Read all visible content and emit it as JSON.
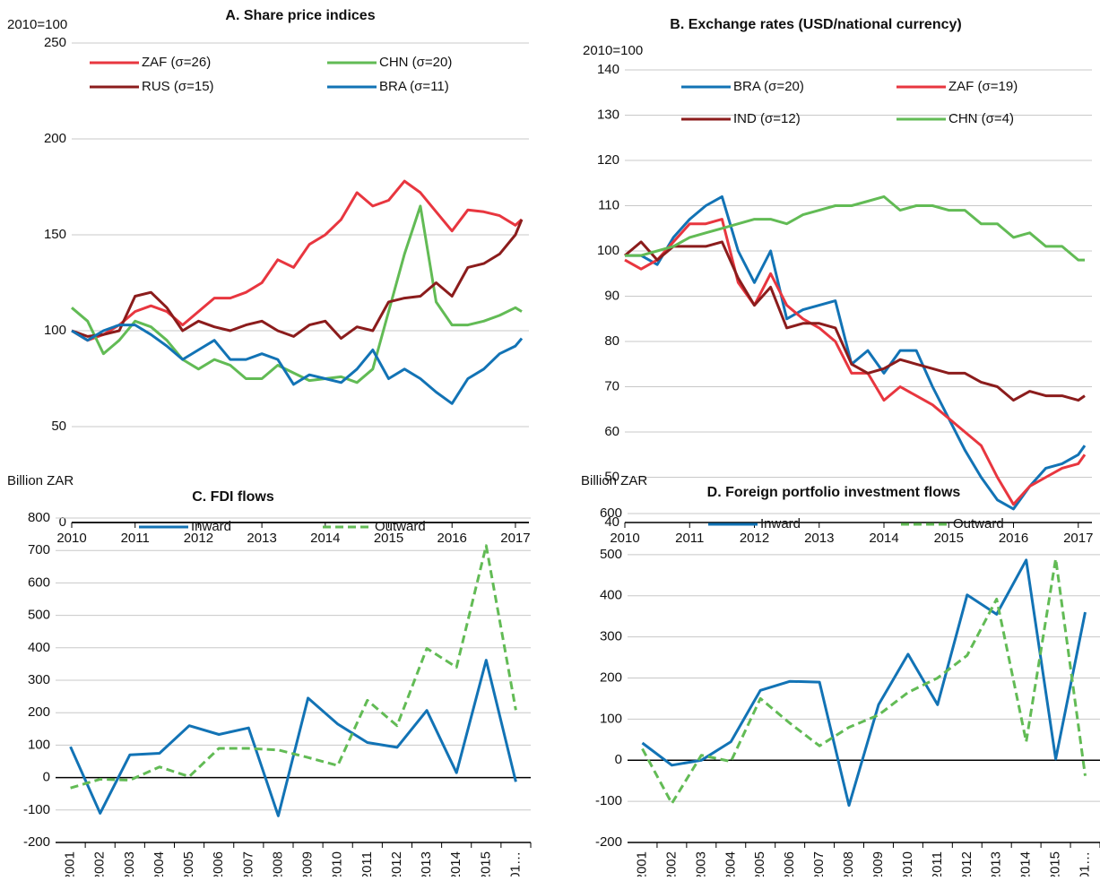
{
  "chart_data": [
    {
      "type": "line",
      "title": "A. Share price indices",
      "ylabel": "2010=100",
      "x": [
        2010,
        2010.25,
        2010.5,
        2010.75,
        2011,
        2011.25,
        2011.5,
        2011.75,
        2012,
        2012.25,
        2012.5,
        2012.75,
        2013,
        2013.25,
        2013.5,
        2013.75,
        2014,
        2014.25,
        2014.5,
        2014.75,
        2015,
        2015.25,
        2015.5,
        2015.75,
        2016,
        2016.25,
        2016.5,
        2016.75,
        2017,
        2017.1
      ],
      "xlim": [
        2010,
        2017.1
      ],
      "xticks": [
        2010,
        2011,
        2012,
        2013,
        2014,
        2015,
        2016,
        2017
      ],
      "ylim": [
        0,
        250
      ],
      "yticks": [
        0,
        50,
        100,
        150,
        200,
        250
      ],
      "grid": true,
      "legend": "top",
      "series": [
        {
          "name": "ZAF (σ=26)",
          "color": "#e8363f",
          "values": [
            100,
            95,
            98,
            103,
            110,
            113,
            110,
            103,
            110,
            117,
            117,
            120,
            125,
            137,
            133,
            145,
            150,
            158,
            172,
            165,
            168,
            178,
            172,
            162,
            152,
            163,
            162,
            160,
            155,
            158
          ]
        },
        {
          "name": "CHN (σ=20)",
          "color": "#62bb55",
          "values": [
            112,
            105,
            88,
            95,
            105,
            102,
            95,
            85,
            80,
            85,
            82,
            75,
            75,
            82,
            78,
            74,
            75,
            76,
            73,
            80,
            110,
            140,
            165,
            115,
            103,
            103,
            105,
            108,
            112,
            110
          ]
        },
        {
          "name": "RUS (σ=15)",
          "color": "#8b1c1c",
          "values": [
            100,
            97,
            98,
            100,
            118,
            120,
            112,
            100,
            105,
            102,
            100,
            103,
            105,
            100,
            97,
            103,
            105,
            96,
            102,
            100,
            115,
            117,
            118,
            125,
            118,
            133,
            135,
            140,
            150,
            158
          ]
        },
        {
          "name": "BRA (σ=11)",
          "color": "#1273b5",
          "values": [
            100,
            95,
            100,
            103,
            103,
            98,
            92,
            85,
            90,
            95,
            85,
            85,
            88,
            85,
            72,
            77,
            75,
            73,
            80,
            90,
            75,
            80,
            75,
            68,
            62,
            75,
            80,
            88,
            92,
            96
          ]
        }
      ]
    },
    {
      "type": "line",
      "title": "B. Exchange rates (USD/national currency)",
      "ylabel": "2010=100",
      "x": [
        2010,
        2010.25,
        2010.5,
        2010.75,
        2011,
        2011.25,
        2011.5,
        2011.75,
        2012,
        2012.25,
        2012.5,
        2012.75,
        2013,
        2013.25,
        2013.5,
        2013.75,
        2014,
        2014.25,
        2014.5,
        2014.75,
        2015,
        2015.25,
        2015.5,
        2015.75,
        2016,
        2016.25,
        2016.5,
        2016.75,
        2017,
        2017.1
      ],
      "xlim": [
        2010,
        2017.1
      ],
      "xticks": [
        2010,
        2011,
        2012,
        2013,
        2014,
        2015,
        2016,
        2017
      ],
      "ylim": [
        40,
        140
      ],
      "yticks": [
        40,
        50,
        60,
        70,
        80,
        90,
        100,
        110,
        120,
        130,
        140
      ],
      "grid": true,
      "legend": "top",
      "series": [
        {
          "name": "BRA (σ=20)",
          "color": "#1273b5",
          "values": [
            99,
            99,
            97,
            103,
            107,
            110,
            112,
            100,
            93,
            100,
            85,
            87,
            88,
            89,
            75,
            78,
            73,
            78,
            78,
            70,
            63,
            56,
            50,
            45,
            43,
            48,
            52,
            53,
            55,
            57
          ]
        },
        {
          "name": "ZAF (σ=19)",
          "color": "#e8363f",
          "values": [
            98,
            96,
            98,
            102,
            106,
            106,
            107,
            93,
            88,
            95,
            88,
            85,
            83,
            80,
            73,
            73,
            67,
            70,
            68,
            66,
            63,
            60,
            57,
            50,
            44,
            48,
            50,
            52,
            53,
            55
          ]
        },
        {
          "name": "IND (σ=12)",
          "color": "#8b1c1c",
          "values": [
            99,
            102,
            98,
            101,
            101,
            101,
            102,
            94,
            88,
            92,
            83,
            84,
            84,
            83,
            75,
            73,
            74,
            76,
            75,
            74,
            73,
            73,
            71,
            70,
            67,
            69,
            68,
            68,
            67,
            68
          ]
        },
        {
          "name": "CHN (σ=4)",
          "color": "#62bb55",
          "values": [
            99,
            99,
            100,
            101,
            103,
            104,
            105,
            106,
            107,
            107,
            106,
            108,
            109,
            110,
            110,
            111,
            112,
            109,
            110,
            110,
            109,
            109,
            106,
            106,
            103,
            104,
            101,
            101,
            98,
            98
          ]
        }
      ]
    },
    {
      "type": "line",
      "title": "C. FDI flows",
      "ylabel": "Billion ZAR",
      "categories": [
        "2001",
        "2002",
        "2003",
        "2004",
        "2005",
        "2006",
        "2007",
        "2008",
        "2009",
        "2010",
        "2011",
        "2012",
        "2013",
        "2014",
        "2015",
        "201…"
      ],
      "ylim": [
        -200,
        800
      ],
      "yticks": [
        -200,
        -100,
        0,
        100,
        200,
        300,
        400,
        500,
        600,
        700,
        800
      ],
      "grid": true,
      "legend": "top",
      "series": [
        {
          "name": "Inward",
          "color": "#1273b5",
          "values": [
            95,
            -110,
            70,
            75,
            160,
            133,
            153,
            -118,
            245,
            165,
            108,
            93,
            207,
            15,
            362,
            -13
          ]
        },
        {
          "name": "Outward",
          "color": "#62bb55",
          "dashed": true,
          "values": [
            -32,
            -5,
            -8,
            33,
            3,
            90,
            90,
            85,
            62,
            37,
            238,
            160,
            398,
            340,
            715,
            208
          ]
        }
      ]
    },
    {
      "type": "line",
      "title": "D. Foreign portfolio investment flows",
      "ylabel": "Billion ZAR",
      "categories": [
        "2001",
        "2002",
        "2003",
        "2004",
        "2005",
        "2006",
        "2007",
        "2008",
        "2009",
        "2010",
        "2011",
        "2012",
        "2013",
        "2014",
        "2015",
        "201…"
      ],
      "ylim": [
        -200,
        600
      ],
      "yticks": [
        -200,
        -100,
        0,
        100,
        200,
        300,
        400,
        500,
        600
      ],
      "grid": true,
      "legend": "top",
      "series": [
        {
          "name": "Inward",
          "color": "#1273b5",
          "values": [
            42,
            -12,
            0,
            45,
            170,
            192,
            190,
            -110,
            135,
            258,
            135,
            402,
            355,
            487,
            3,
            360
          ]
        },
        {
          "name": "Outward",
          "color": "#62bb55",
          "dashed": true,
          "values": [
            28,
            -105,
            12,
            -3,
            150,
            90,
            35,
            80,
            110,
            165,
            200,
            255,
            392,
            45,
            490,
            -38
          ]
        }
      ]
    }
  ]
}
